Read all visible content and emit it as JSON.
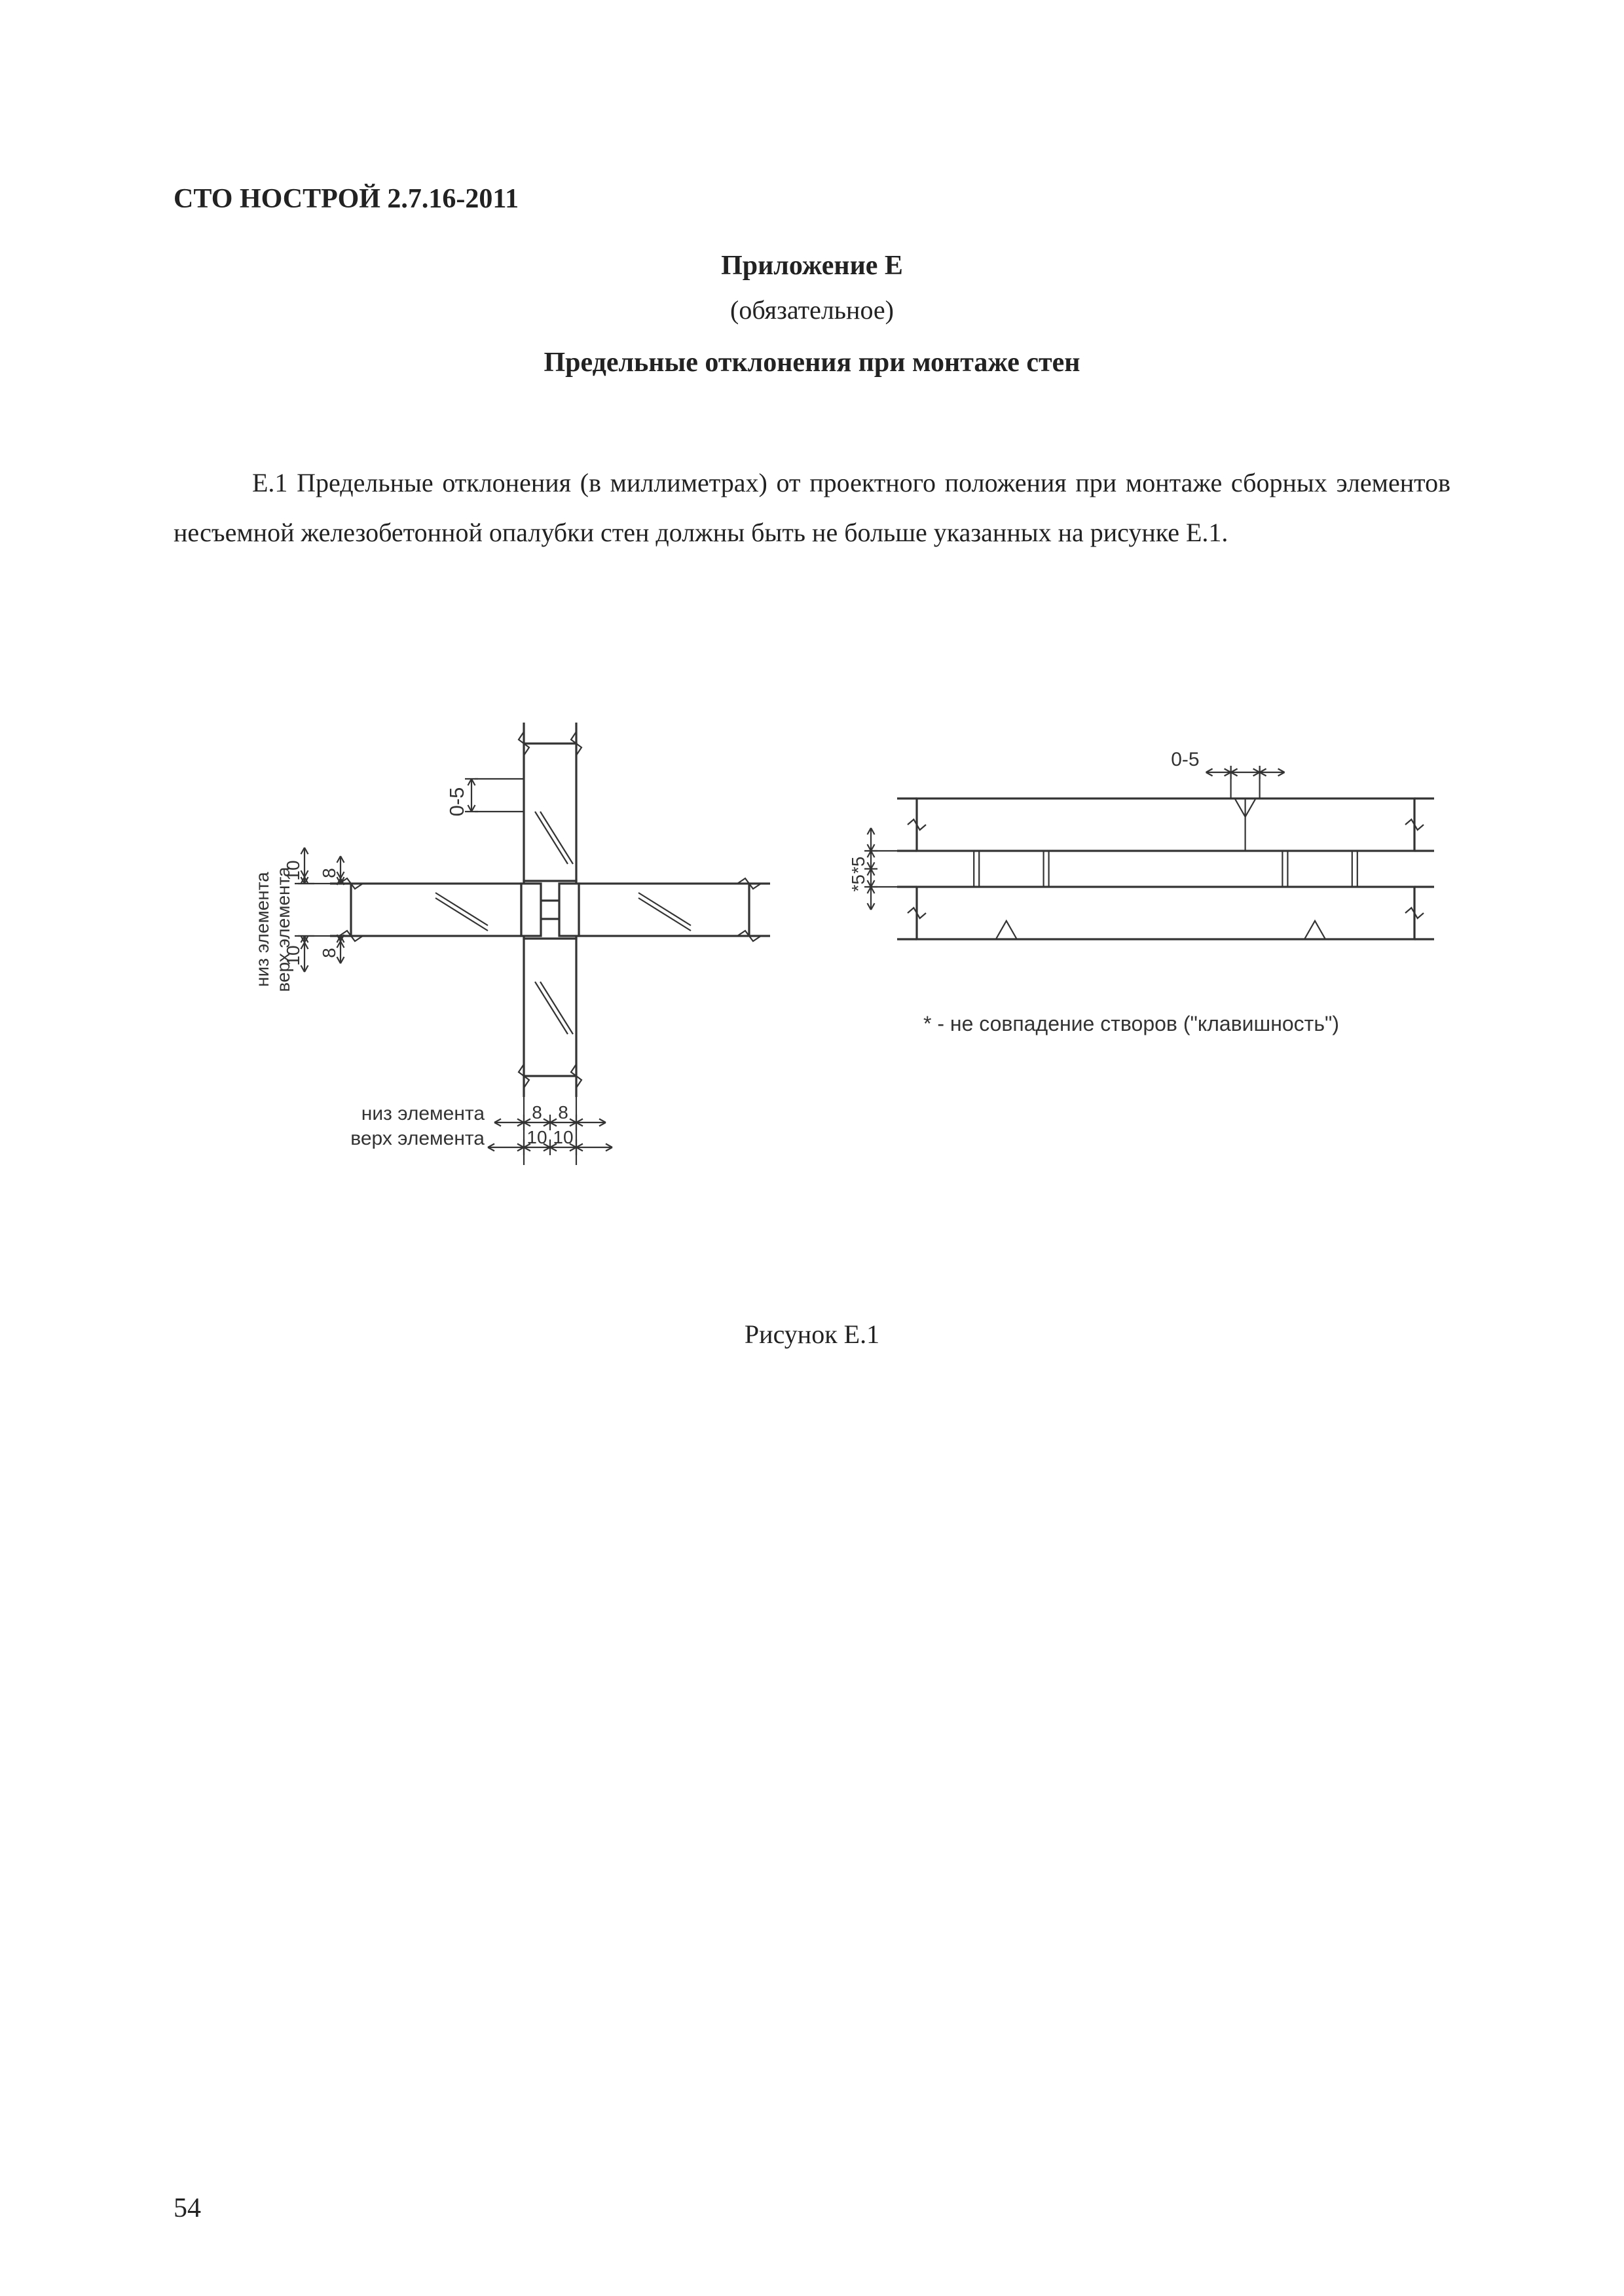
{
  "doc_code": "СТО НОСТРОЙ 2.7.16-2011",
  "appendix": "Приложение Е",
  "mandatory": "(обязательное)",
  "subtitle": "Предельные отклонения при монтаже стен",
  "para": "Е.1 Предельные отклонения (в миллиметрах) от проектного положения при монтаже сборных элементов несъемной железобетонной опалубки стен должны быть не больше указанных на рисунке Е.1.",
  "fig_caption": "Рисунок Е.1",
  "page": "54",
  "dwg": {
    "stroke": "#333333",
    "thin": 2.2,
    "med": 3.2,
    "text_size": 31,
    "labels": {
      "tol05": "0-5",
      "low_label": "низ элемента",
      "top_label": "верх элемента",
      "dim8": "8",
      "dim10": "10",
      "star5": "*5",
      "footnote": "* - не совпадение створов (\"клавишность\")"
    }
  }
}
